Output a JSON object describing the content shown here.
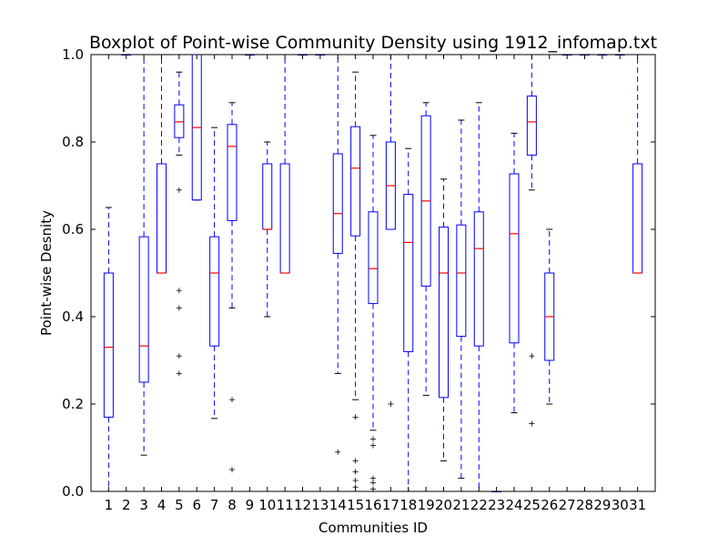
{
  "chart_data": {
    "type": "boxplot",
    "title": "Boxplot of Point-wise Community Density using 1912_infomap.txt",
    "xlabel": "Communities ID",
    "ylabel": "Point-wise Desnity",
    "ylim": [
      0.0,
      1.0
    ],
    "yticks": [
      "0.0",
      "0.2",
      "0.4",
      "0.6",
      "0.8",
      "1.0"
    ],
    "grid": false,
    "colors": {
      "box": "#0000ff",
      "median": "#ff0000",
      "flier": "#000000"
    },
    "categories": [
      "1",
      "2",
      "3",
      "4",
      "5",
      "6",
      "7",
      "8",
      "9",
      "10",
      "11",
      "12",
      "13",
      "14",
      "15",
      "16",
      "17",
      "18",
      "19",
      "20",
      "21",
      "22",
      "23",
      "24",
      "25",
      "26",
      "27",
      "28",
      "29",
      "30",
      "31"
    ],
    "boxes": [
      {
        "id": "1",
        "whislo": 0.0,
        "q1": 0.17,
        "med": 0.33,
        "q3": 0.5,
        "whishi": 0.65,
        "fliers": []
      },
      {
        "id": "2",
        "whislo": 1.0,
        "q1": 1.0,
        "med": 1.0,
        "q3": 1.0,
        "whishi": 1.0,
        "fliers": []
      },
      {
        "id": "3",
        "whislo": 0.083,
        "q1": 0.25,
        "med": 0.333,
        "q3": 0.583,
        "whishi": 1.0,
        "fliers": []
      },
      {
        "id": "4",
        "whislo": 0.5,
        "q1": 0.5,
        "med": 0.5,
        "q3": 0.75,
        "whishi": 1.0,
        "fliers": []
      },
      {
        "id": "5",
        "whislo": 0.77,
        "q1": 0.81,
        "med": 0.846,
        "q3": 0.885,
        "whishi": 0.96,
        "fliers": [
          0.69,
          0.46,
          0.42,
          0.31,
          0.27
        ]
      },
      {
        "id": "6",
        "whislo": 0.667,
        "q1": 0.667,
        "med": 0.833,
        "q3": 1.0,
        "whishi": 1.0,
        "fliers": []
      },
      {
        "id": "7",
        "whislo": 0.167,
        "q1": 0.333,
        "med": 0.5,
        "q3": 0.583,
        "whishi": 0.833,
        "fliers": []
      },
      {
        "id": "8",
        "whislo": 0.42,
        "q1": 0.62,
        "med": 0.79,
        "q3": 0.84,
        "whishi": 0.89,
        "fliers": [
          0.21,
          0.05
        ]
      },
      {
        "id": "9",
        "whislo": 1.0,
        "q1": 1.0,
        "med": 1.0,
        "q3": 1.0,
        "whishi": 1.0,
        "fliers": []
      },
      {
        "id": "10",
        "whislo": 0.4,
        "q1": 0.6,
        "med": 0.6,
        "q3": 0.75,
        "whishi": 0.8,
        "fliers": []
      },
      {
        "id": "11",
        "whislo": 0.5,
        "q1": 0.5,
        "med": 0.5,
        "q3": 0.75,
        "whishi": 1.0,
        "fliers": []
      },
      {
        "id": "12",
        "whislo": 1.0,
        "q1": 1.0,
        "med": 1.0,
        "q3": 1.0,
        "whishi": 1.0,
        "fliers": []
      },
      {
        "id": "13",
        "whislo": 1.0,
        "q1": 1.0,
        "med": 1.0,
        "q3": 1.0,
        "whishi": 1.0,
        "fliers": []
      },
      {
        "id": "14",
        "whislo": 0.27,
        "q1": 0.545,
        "med": 0.636,
        "q3": 0.773,
        "whishi": 1.0,
        "fliers": [
          0.09
        ]
      },
      {
        "id": "15",
        "whislo": 0.21,
        "q1": 0.585,
        "med": 0.74,
        "q3": 0.835,
        "whishi": 0.96,
        "fliers": [
          0.17,
          0.07,
          0.045,
          0.025,
          0.01
        ]
      },
      {
        "id": "16",
        "whislo": 0.14,
        "q1": 0.43,
        "med": 0.51,
        "q3": 0.64,
        "whishi": 0.815,
        "fliers": [
          0.12,
          0.105,
          0.03,
          0.02,
          0.005
        ]
      },
      {
        "id": "17",
        "whislo": 0.6,
        "q1": 0.6,
        "med": 0.7,
        "q3": 0.8,
        "whishi": 1.0,
        "fliers": [
          0.2
        ]
      },
      {
        "id": "18",
        "whislo": 0.0,
        "q1": 0.32,
        "med": 0.57,
        "q3": 0.68,
        "whishi": 0.785,
        "fliers": []
      },
      {
        "id": "19",
        "whislo": 0.22,
        "q1": 0.47,
        "med": 0.665,
        "q3": 0.86,
        "whishi": 0.89,
        "fliers": []
      },
      {
        "id": "20",
        "whislo": 0.07,
        "q1": 0.215,
        "med": 0.5,
        "q3": 0.605,
        "whishi": 0.715,
        "fliers": []
      },
      {
        "id": "21",
        "whislo": 0.03,
        "q1": 0.355,
        "med": 0.5,
        "q3": 0.61,
        "whishi": 0.85,
        "fliers": []
      },
      {
        "id": "22",
        "whislo": 0.0,
        "q1": 0.333,
        "med": 0.556,
        "q3": 0.64,
        "whishi": 0.89,
        "fliers": []
      },
      {
        "id": "23",
        "whislo": 0.0,
        "q1": 0.0,
        "med": 0.0,
        "q3": 0.0,
        "whishi": 0.0,
        "fliers": []
      },
      {
        "id": "24",
        "whislo": 0.18,
        "q1": 0.34,
        "med": 0.59,
        "q3": 0.727,
        "whishi": 0.82,
        "fliers": []
      },
      {
        "id": "25",
        "whislo": 0.69,
        "q1": 0.77,
        "med": 0.846,
        "q3": 0.905,
        "whishi": 1.0,
        "fliers": [
          0.31,
          0.155
        ]
      },
      {
        "id": "26",
        "whislo": 0.2,
        "q1": 0.3,
        "med": 0.4,
        "q3": 0.5,
        "whishi": 0.6,
        "fliers": []
      },
      {
        "id": "27",
        "whislo": 1.0,
        "q1": 1.0,
        "med": 1.0,
        "q3": 1.0,
        "whishi": 1.0,
        "fliers": []
      },
      {
        "id": "28",
        "whislo": 1.0,
        "q1": 1.0,
        "med": 1.0,
        "q3": 1.0,
        "whishi": 1.0,
        "fliers": []
      },
      {
        "id": "29",
        "whislo": 1.0,
        "q1": 1.0,
        "med": 1.0,
        "q3": 1.0,
        "whishi": 1.0,
        "fliers": []
      },
      {
        "id": "30",
        "whislo": 1.0,
        "q1": 1.0,
        "med": 1.0,
        "q3": 1.0,
        "whishi": 1.0,
        "fliers": []
      },
      {
        "id": "31",
        "whislo": 0.5,
        "q1": 0.5,
        "med": 0.5,
        "q3": 0.75,
        "whishi": 1.0,
        "fliers": []
      }
    ]
  }
}
